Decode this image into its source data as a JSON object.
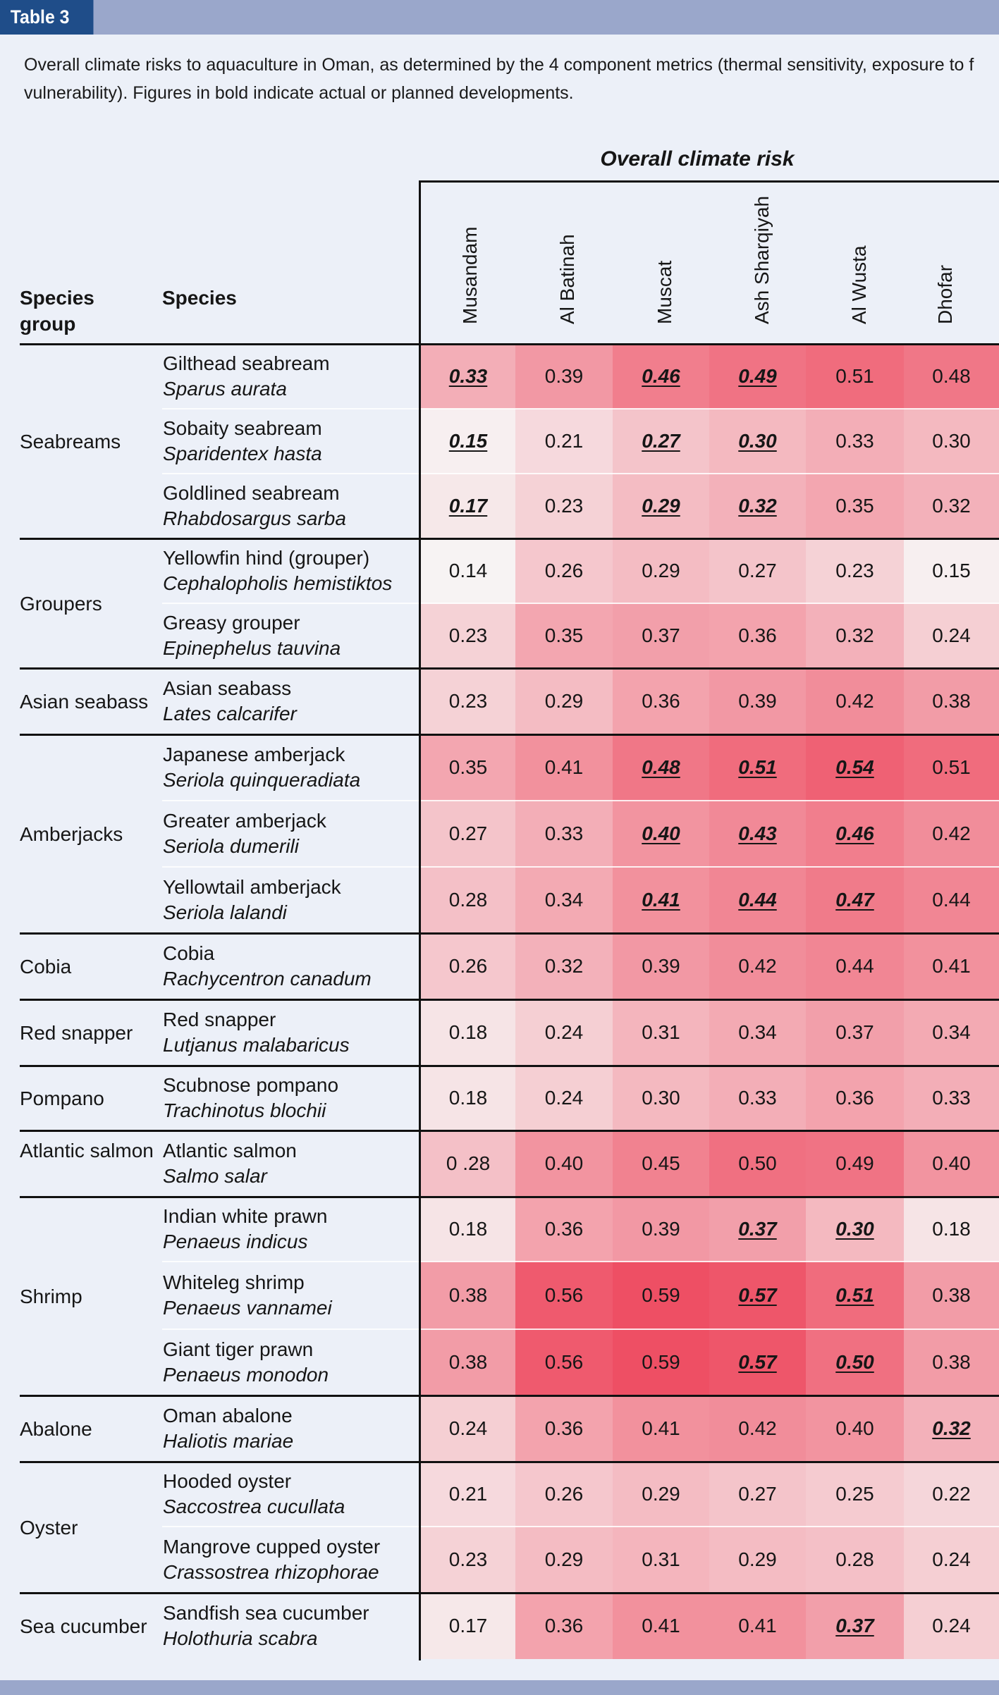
{
  "table_label": "Table 3",
  "caption_line1": "Overall climate risks to aquaculture in Oman, as determined by the 4 component metrics (thermal sensitivity, exposure to f",
  "caption_line2": "vulnerability). Figures in bold indicate actual or planned developments.",
  "overall_title": "Overall climate risk",
  "head_species_group": "Species group",
  "head_species": "Species",
  "regions": [
    "Musandam",
    "Al Batinah",
    "Muscat",
    "Ash Sharqiyah",
    "Al Wusta",
    "Dhofar"
  ],
  "groups": [
    {
      "label": "Seabreams",
      "rows": 3
    },
    {
      "label": "Groupers",
      "rows": 2
    },
    {
      "label": "Asian seabass",
      "rows": 1
    },
    {
      "label": "Amberjacks",
      "rows": 3
    },
    {
      "label": "Cobia",
      "rows": 1
    },
    {
      "label": "Red snapper",
      "rows": 1
    },
    {
      "label": "Pompano",
      "rows": 1
    },
    {
      "label": "Atlantic salmon",
      "rows": 1
    },
    {
      "label": "Shrimp",
      "rows": 3
    },
    {
      "label": "Abalone",
      "rows": 1
    },
    {
      "label": "Oyster",
      "rows": 2
    },
    {
      "label": "Sea cucumber",
      "rows": 1
    }
  ],
  "rows": [
    {
      "common": "Gilthead seabream",
      "sci": "Sparus aurata",
      "values": [
        "0.33",
        "0.39",
        "0.46",
        "0.49",
        "0.51",
        "0.48"
      ],
      "bold": [
        true,
        false,
        true,
        true,
        false,
        false
      ]
    },
    {
      "common": "Sobaity seabream",
      "sci": "Sparidentex hasta",
      "values": [
        "0.15",
        "0.21",
        "0.27",
        "0.30",
        "0.33",
        "0.30"
      ],
      "bold": [
        true,
        false,
        true,
        true,
        false,
        false
      ]
    },
    {
      "common": "Goldlined seabream",
      "sci": "Rhabdosargus sarba",
      "values": [
        "0.17",
        "0.23",
        "0.29",
        "0.32",
        "0.35",
        "0.32"
      ],
      "bold": [
        true,
        false,
        true,
        true,
        false,
        false
      ]
    },
    {
      "common": "Yellowfin hind (grouper)",
      "sci": "Cephalopholis hemistiktos",
      "values": [
        "0.14",
        "0.26",
        "0.29",
        "0.27",
        "0.23",
        "0.15"
      ],
      "bold": [
        false,
        false,
        false,
        false,
        false,
        false
      ]
    },
    {
      "common": "Greasy grouper",
      "sci": "Epinephelus tauvina",
      "values": [
        "0.23",
        "0.35",
        "0.37",
        "0.36",
        "0.32",
        "0.24"
      ],
      "bold": [
        false,
        false,
        false,
        false,
        false,
        false
      ]
    },
    {
      "common": "Asian seabass",
      "sci": "Lates calcarifer",
      "values": [
        "0.23",
        "0.29",
        "0.36",
        "0.39",
        "0.42",
        "0.38"
      ],
      "bold": [
        false,
        false,
        false,
        false,
        false,
        false
      ]
    },
    {
      "common": "Japanese amberjack",
      "sci": "Seriola quinqueradiata",
      "values": [
        "0.35",
        "0.41",
        "0.48",
        "0.51",
        "0.54",
        "0.51"
      ],
      "bold": [
        false,
        false,
        true,
        true,
        true,
        false
      ]
    },
    {
      "common": "Greater amberjack",
      "sci": "Seriola dumerili",
      "values": [
        "0.27",
        "0.33",
        "0.40",
        "0.43",
        "0.46",
        "0.42"
      ],
      "bold": [
        false,
        false,
        true,
        true,
        true,
        false
      ]
    },
    {
      "common": "Yellowtail amberjack",
      "sci": "Seriola lalandi",
      "values": [
        "0.28",
        "0.34",
        "0.41",
        "0.44",
        "0.47",
        "0.44"
      ],
      "bold": [
        false,
        false,
        true,
        true,
        true,
        false
      ]
    },
    {
      "common": "Cobia",
      "sci": "Rachycentron canadum",
      "values": [
        "0.26",
        "0.32",
        "0.39",
        "0.42",
        "0.44",
        "0.41"
      ],
      "bold": [
        false,
        false,
        false,
        false,
        false,
        false
      ]
    },
    {
      "common": "Red snapper",
      "sci": "Lutjanus malabaricus",
      "values": [
        "0.18",
        "0.24",
        "0.31",
        "0.34",
        "0.37",
        "0.34"
      ],
      "bold": [
        false,
        false,
        false,
        false,
        false,
        false
      ]
    },
    {
      "common": "Scubnose pompano",
      "sci": "Trachinotus blochii",
      "values": [
        "0.18",
        "0.24",
        "0.30",
        "0.33",
        "0.36",
        "0.33"
      ],
      "bold": [
        false,
        false,
        false,
        false,
        false,
        false
      ]
    },
    {
      "common": "Atlantic salmon",
      "sci": "Salmo salar",
      "values": [
        "0 .28",
        "0.40",
        "0.45",
        "0.50",
        "0.49",
        "0.40"
      ],
      "bold": [
        false,
        false,
        false,
        false,
        false,
        false
      ]
    },
    {
      "common": "Indian white prawn",
      "sci": "Penaeus indicus",
      "values": [
        "0.18",
        "0.36",
        "0.39",
        "0.37",
        "0.30",
        "0.18"
      ],
      "bold": [
        false,
        false,
        false,
        true,
        true,
        false
      ]
    },
    {
      "common": "Whiteleg shrimp",
      "sci": "Penaeus vannamei",
      "values": [
        "0.38",
        "0.56",
        "0.59",
        "0.57",
        "0.51",
        "0.38"
      ],
      "bold": [
        false,
        false,
        false,
        true,
        true,
        false
      ]
    },
    {
      "common": "Giant tiger prawn",
      "sci": "Penaeus monodon",
      "values": [
        "0.38",
        "0.56",
        "0.59",
        "0.57",
        "0.50",
        "0.38"
      ],
      "bold": [
        false,
        false,
        false,
        true,
        true,
        false
      ]
    },
    {
      "common": "Oman abalone",
      "sci": "Haliotis mariae",
      "values": [
        "0.24",
        "0.36",
        "0.41",
        "0.42",
        "0.40",
        "0.32"
      ],
      "bold": [
        false,
        false,
        false,
        false,
        false,
        true
      ]
    },
    {
      "common": "Hooded oyster",
      "sci": "Saccostrea cucullata",
      "values": [
        "0.21",
        "0.26",
        "0.29",
        "0.27",
        "0.25",
        "0.22"
      ],
      "bold": [
        false,
        false,
        false,
        false,
        false,
        false
      ]
    },
    {
      "common": "Mangrove cupped oyster",
      "sci": "Crassostrea rhizophorae",
      "values": [
        "0.23",
        "0.29",
        "0.31",
        "0.29",
        "0.28",
        "0.24"
      ],
      "bold": [
        false,
        false,
        false,
        false,
        false,
        false
      ]
    },
    {
      "common": "Sandfish sea cucumber",
      "sci": "Holothuria scabra",
      "values": [
        "0.17",
        "0.36",
        "0.41",
        "0.41",
        "0.37",
        "0.24"
      ],
      "bold": [
        false,
        false,
        false,
        false,
        true,
        false
      ]
    }
  ],
  "colors": {
    "header_band": "#9aa7cb",
    "tag_blue": "#1f4d89",
    "low_risk": "#f7f3f3",
    "high_risk": "#ee4f64"
  }
}
